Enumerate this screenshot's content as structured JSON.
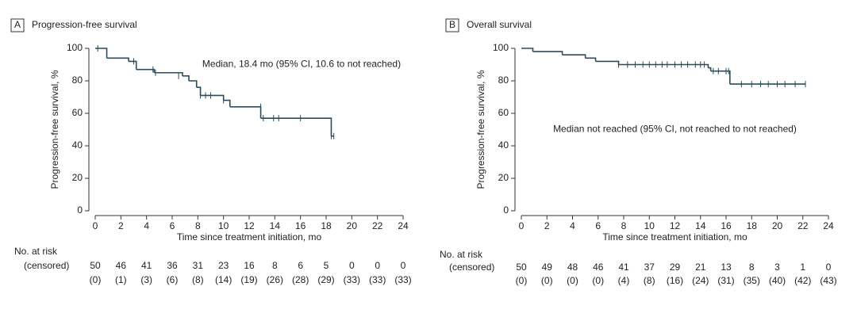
{
  "chart_data": [
    {
      "type": "step",
      "panel": "A",
      "title": "Progression-free survival",
      "xlabel": "Time since treatment initiation, mo",
      "ylabel": "Progression-free survival, %",
      "annotation": "Median, 18.4 mo (95% CI, 10.6 to not reached)",
      "xlim": [
        0,
        24
      ],
      "xticks": [
        0,
        2,
        4,
        6,
        8,
        10,
        12,
        14,
        16,
        18,
        20,
        22,
        24
      ],
      "ylim": [
        0,
        100
      ],
      "yticks": [
        0,
        20,
        40,
        60,
        80,
        100
      ],
      "color": "#2a4c5c",
      "x": [
        0,
        0.9,
        2.6,
        3.2,
        4.6,
        6.8,
        7.3,
        7.9,
        8.2,
        10.0,
        10.5,
        12.9,
        18.4,
        18.6
      ],
      "values": [
        100,
        94,
        92,
        87,
        85,
        83,
        80,
        76,
        71,
        68,
        64,
        57,
        46,
        46
      ],
      "censor_x": [
        0.2,
        3.0,
        4.5,
        4.7,
        6.5,
        8.2,
        8.6,
        9.0,
        10.0,
        12.9,
        13.1,
        13.9,
        14.3,
        16.0,
        18.4,
        18.6
      ],
      "censor_values": [
        100,
        92,
        87,
        85,
        83,
        71,
        71,
        71,
        68,
        64,
        57,
        57,
        57,
        57,
        46,
        46
      ],
      "risk_title": "No. at risk",
      "risk_subtitle": "(censored)",
      "at_risk": [
        50,
        46,
        41,
        36,
        31,
        23,
        16,
        8,
        6,
        5,
        0,
        0,
        0
      ],
      "censored": [
        0,
        1,
        3,
        6,
        8,
        14,
        19,
        26,
        28,
        29,
        33,
        33,
        33
      ],
      "censored_labels": [
        "(0)",
        "(1)",
        "(3)",
        "(6)",
        "(8)",
        "(14)",
        "(19)",
        "(26)",
        "(28)",
        "(29)",
        "(33)",
        "(33)",
        "(33)"
      ]
    },
    {
      "type": "step",
      "panel": "B",
      "title": "Overall survival",
      "xlabel": "Time since treatment initiation, mo",
      "ylabel": "Progression-free survival, %",
      "annotation": "Median not reached (95% CI, not reached to not reached)",
      "xlim": [
        0,
        24
      ],
      "xticks": [
        0,
        2,
        4,
        6,
        8,
        10,
        12,
        14,
        16,
        18,
        20,
        22,
        24
      ],
      "ylim": [
        0,
        100
      ],
      "yticks": [
        0,
        20,
        40,
        60,
        80,
        100
      ],
      "color": "#2a4c5c",
      "x": [
        0,
        0.9,
        3.2,
        5.0,
        5.8,
        7.6,
        14.6,
        14.8,
        16.3,
        22.2
      ],
      "values": [
        100,
        98,
        96,
        94,
        92,
        90,
        88,
        86,
        78,
        78
      ],
      "censor_x": [
        7.6,
        8.3,
        8.9,
        9.5,
        10.0,
        10.5,
        11.0,
        11.4,
        12.0,
        12.5,
        13.0,
        13.6,
        14.0,
        14.3,
        15.0,
        15.4,
        16.0,
        16.2,
        17.2,
        18.0,
        18.7,
        19.3,
        20.0,
        20.6,
        21.4,
        22.2
      ],
      "censor_values": [
        90,
        90,
        90,
        90,
        90,
        90,
        90,
        90,
        90,
        90,
        90,
        90,
        90,
        90,
        86,
        86,
        86,
        86,
        78,
        78,
        78,
        78,
        78,
        78,
        78,
        78
      ],
      "risk_title": "No. at risk",
      "risk_subtitle": "(censored)",
      "at_risk": [
        50,
        49,
        48,
        46,
        41,
        37,
        29,
        21,
        13,
        8,
        3,
        1,
        0
      ],
      "censored": [
        0,
        0,
        0,
        0,
        4,
        8,
        16,
        24,
        31,
        35,
        40,
        42,
        43
      ],
      "censored_labels": [
        "(0)",
        "(0)",
        "(0)",
        "(0)",
        "(4)",
        "(8)",
        "(16)",
        "(24)",
        "(31)",
        "(35)",
        "(40)",
        "(42)",
        "(43)"
      ]
    }
  ]
}
